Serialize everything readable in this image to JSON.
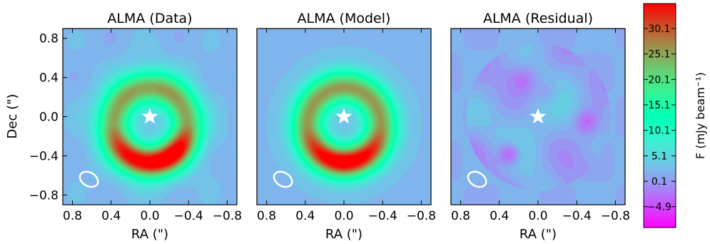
{
  "chart_data": {
    "type": "heatmap",
    "panels": [
      {
        "title": "ALMA (Data)",
        "residual": false,
        "arc": "data"
      },
      {
        "title": "ALMA (Model)",
        "residual": false,
        "arc": "model"
      },
      {
        "title": "ALMA (Residual)",
        "residual": true,
        "arc": "none"
      }
    ],
    "x_axis": {
      "label": "RA (\")",
      "range": [
        0.9,
        -0.9
      ],
      "ticks": [
        0.8,
        0.4,
        0.0,
        -0.4,
        -0.8
      ],
      "tick_labels": [
        "0.8",
        "0.4",
        "0.0",
        "−0.4",
        "−0.8"
      ]
    },
    "y_axis": {
      "label": "Dec (\")",
      "range": [
        -0.9,
        0.9
      ],
      "ticks": [
        0.8,
        0.4,
        0.0,
        -0.4,
        -0.8
      ],
      "tick_labels": [
        "0.8",
        "0.4",
        "0.0",
        "−0.4",
        "−0.8"
      ]
    },
    "colorbar": {
      "label": "F (mJy beam⁻¹)",
      "range": [
        -9,
        35
      ],
      "ticks": [
        30.1,
        25.1,
        20.1,
        15.1,
        10.1,
        5.1,
        0.1,
        -4.9
      ],
      "tick_labels": [
        "30.1",
        "25.1",
        "20.1",
        "15.1",
        "10.1",
        "5.1",
        "0.1",
        "−4.9"
      ],
      "colormap": "rainbow"
    },
    "ring": {
      "center": [
        0.0,
        -0.08
      ],
      "radius": 0.38,
      "width": 0.11,
      "peak": 33,
      "background": 2
    },
    "star_position": [
      0.0,
      0.0
    ],
    "beam": {
      "center": [
        0.63,
        -0.64
      ],
      "major": 0.1,
      "minor": 0.07,
      "angle_deg": 30
    }
  }
}
